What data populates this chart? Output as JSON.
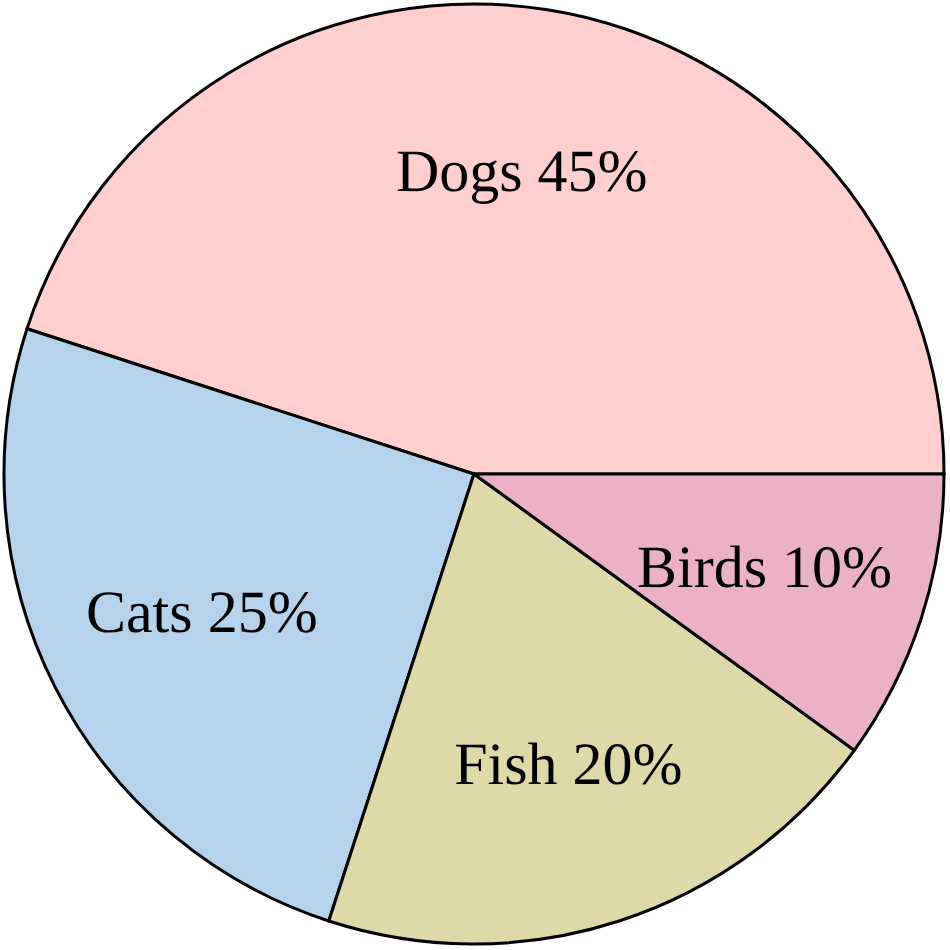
{
  "chart_data": {
    "type": "pie",
    "categories": [
      "Dogs",
      "Cats",
      "Fish",
      "Birds"
    ],
    "values": [
      45,
      25,
      20,
      10
    ],
    "value_labels": [
      "45%",
      "25%",
      "20%",
      "10%"
    ],
    "colors": [
      "#ffcfd0",
      "#b5d3ec",
      "#dfd9a9",
      "#ebb1c7"
    ]
  }
}
